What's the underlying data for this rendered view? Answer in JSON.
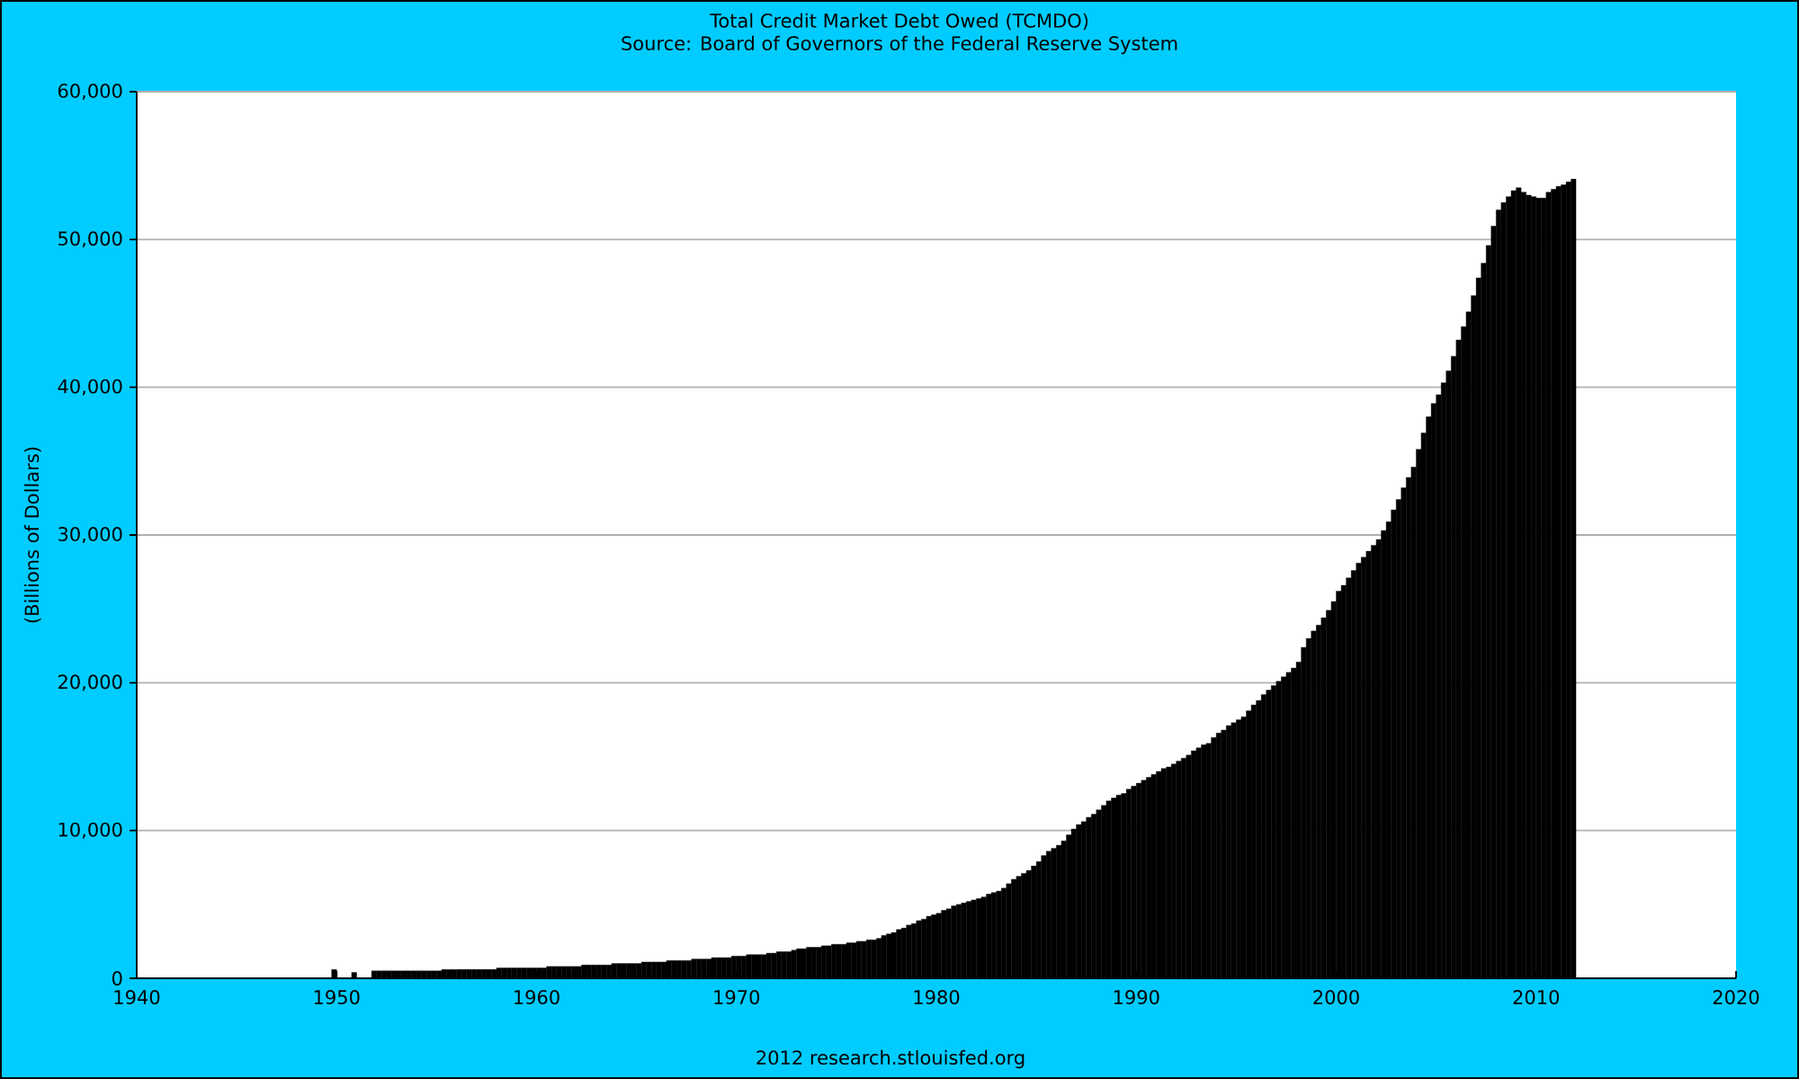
{
  "chart_data": {
    "type": "bar",
    "title": "Total Credit Market Debt Owed (TCMDO)",
    "subtitle": "Source: Board of Governors of the Federal Reserve System",
    "ylabel": "(Billions of Dollars)",
    "annotations": [
      "2012 research.stlouisfed.org"
    ],
    "color": "#000000",
    "grid": "y",
    "xlim": [
      "1940",
      "2020"
    ],
    "xticks": [
      "1940",
      "1950",
      "1960",
      "1970",
      "1980",
      "1990",
      "2000",
      "2010",
      "2020"
    ],
    "ylim": [
      0,
      60000
    ],
    "yticks": [
      0,
      {
        "value": 10000,
        "label": "10,000"
      },
      {
        "value": 20000,
        "label": "20,000"
      },
      {
        "value": 30000,
        "label": "30,000"
      },
      {
        "value": 40000,
        "label": "40,000"
      },
      {
        "value": 50000,
        "label": "50,000"
      },
      {
        "value": 60000,
        "label": "60,000"
      }
    ],
    "x": [
      "1949-10",
      "1950-10",
      "1951-10",
      "1952-01",
      "1952-04",
      "1952-07",
      "1952-10",
      "1953-01",
      "1953-04",
      "1953-07",
      "1953-10",
      "1954-01",
      "1954-04",
      "1954-07",
      "1954-10",
      "1955-01",
      "1955-04",
      "1955-07",
      "1955-10",
      "1956-01",
      "1956-04",
      "1956-07",
      "1956-10",
      "1957-01",
      "1957-04",
      "1957-07",
      "1957-10",
      "1958-01",
      "1958-04",
      "1958-07",
      "1958-10",
      "1959-01",
      "1959-04",
      "1959-07",
      "1959-10",
      "1960-01",
      "1960-04",
      "1960-07",
      "1960-10",
      "1961-01",
      "1961-04",
      "1961-07",
      "1961-10",
      "1962-01",
      "1962-04",
      "1962-07",
      "1962-10",
      "1963-01",
      "1963-04",
      "1963-07",
      "1963-10",
      "1964-01",
      "1964-04",
      "1964-07",
      "1964-10",
      "1965-01",
      "1965-04",
      "1965-07",
      "1965-10",
      "1966-01",
      "1966-04",
      "1966-07",
      "1966-10",
      "1967-01",
      "1967-04",
      "1967-07",
      "1967-10",
      "1968-01",
      "1968-04",
      "1968-07",
      "1968-10",
      "1969-01",
      "1969-04",
      "1969-07",
      "1969-10",
      "1970-01",
      "1970-04",
      "1970-07",
      "1970-10",
      "1971-01",
      "1971-04",
      "1971-07",
      "1971-10",
      "1972-01",
      "1972-04",
      "1972-07",
      "1972-10",
      "1973-01",
      "1973-04",
      "1973-07",
      "1973-10",
      "1974-01",
      "1974-04",
      "1974-07",
      "1974-10",
      "1975-01",
      "1975-04",
      "1975-07",
      "1975-10",
      "1976-01",
      "1976-04",
      "1976-07",
      "1976-10",
      "1977-01",
      "1977-04",
      "1977-07",
      "1977-10",
      "1978-01",
      "1978-04",
      "1978-07",
      "1978-10",
      "1979-01",
      "1979-04",
      "1979-07",
      "1979-10",
      "1980-01",
      "1980-04",
      "1980-07",
      "1980-10",
      "1981-01",
      "1981-04",
      "1981-07",
      "1981-10",
      "1982-01",
      "1982-04",
      "1982-07",
      "1982-10",
      "1983-01",
      "1983-04",
      "1983-07",
      "1983-10",
      "1984-01",
      "1984-04",
      "1984-07",
      "1984-10",
      "1985-01",
      "1985-04",
      "1985-07",
      "1985-10",
      "1986-01",
      "1986-04",
      "1986-07",
      "1986-10",
      "1987-01",
      "1987-04",
      "1987-07",
      "1987-10",
      "1988-01",
      "1988-04",
      "1988-07",
      "1988-10",
      "1989-01",
      "1989-04",
      "1989-07",
      "1989-10",
      "1990-01",
      "1990-04",
      "1990-07",
      "1990-10",
      "1991-01",
      "1991-04",
      "1991-07",
      "1991-10",
      "1992-01",
      "1992-04",
      "1992-07",
      "1992-10",
      "1993-01",
      "1993-04",
      "1993-07",
      "1993-10",
      "1994-01",
      "1994-04",
      "1994-07",
      "1994-10",
      "1995-01",
      "1995-04",
      "1995-07",
      "1995-10",
      "1996-01",
      "1996-04",
      "1996-07",
      "1996-10",
      "1997-01",
      "1997-04",
      "1997-07",
      "1997-10",
      "1998-01",
      "1998-04",
      "1998-07",
      "1998-10",
      "1999-01",
      "1999-04",
      "1999-07",
      "1999-10",
      "2000-01",
      "2000-04",
      "2000-07",
      "2000-10",
      "2001-01",
      "2001-04",
      "2001-07",
      "2001-10",
      "2002-01",
      "2002-04",
      "2002-07",
      "2002-10",
      "2003-01",
      "2003-04",
      "2003-07",
      "2003-10",
      "2004-01",
      "2004-04",
      "2004-07",
      "2004-10",
      "2005-01",
      "2005-04",
      "2005-07",
      "2005-10",
      "2006-01",
      "2006-04",
      "2006-07",
      "2006-10",
      "2007-01",
      "2007-04",
      "2007-07",
      "2007-10",
      "2008-01",
      "2008-04",
      "2008-07",
      "2008-10",
      "2009-01",
      "2009-04",
      "2009-07",
      "2009-10",
      "2010-01",
      "2010-04",
      "2010-07",
      "2010-10",
      "2011-01",
      "2011-04",
      "2011-07",
      "2011-10"
    ],
    "values": [
      600,
      400,
      500,
      500,
      500,
      500,
      500,
      500,
      500,
      500,
      500,
      500,
      500,
      500,
      500,
      500,
      600,
      600,
      600,
      600,
      600,
      600,
      600,
      600,
      600,
      600,
      600,
      700,
      700,
      700,
      700,
      700,
      700,
      700,
      700,
      700,
      700,
      800,
      800,
      800,
      800,
      800,
      800,
      800,
      900,
      900,
      900,
      900,
      900,
      900,
      1000,
      1000,
      1000,
      1000,
      1000,
      1000,
      1100,
      1100,
      1100,
      1100,
      1100,
      1200,
      1200,
      1200,
      1200,
      1200,
      1300,
      1300,
      1300,
      1300,
      1400,
      1400,
      1400,
      1400,
      1500,
      1500,
      1500,
      1600,
      1600,
      1600,
      1600,
      1700,
      1700,
      1800,
      1800,
      1800,
      1900,
      2000,
      2000,
      2100,
      2100,
      2100,
      2200,
      2200,
      2300,
      2300,
      2300,
      2400,
      2400,
      2500,
      2500,
      2600,
      2600,
      2700,
      2900,
      3000,
      3100,
      3300,
      3400,
      3600,
      3700,
      3900,
      4000,
      4200,
      4300,
      4400,
      4600,
      4700,
      4900,
      5000,
      5100,
      5200,
      5300,
      5400,
      5500,
      5700,
      5800,
      5900,
      6100,
      6400,
      6700,
      6900,
      7100,
      7300,
      7600,
      7900,
      8300,
      8600,
      8800,
      9000,
      9300,
      9700,
      10100,
      10400,
      10600,
      10900,
      11100,
      11400,
      11700,
      12000,
      12200,
      12400,
      12500,
      12800,
      13000,
      13200,
      13400,
      13600,
      13800,
      14000,
      14200,
      14300,
      14500,
      14700,
      14900,
      15100,
      15400,
      15600,
      15800,
      15900,
      16300,
      16600,
      16800,
      17100,
      17300,
      17500,
      17700,
      18100,
      18500,
      18800,
      19200,
      19500,
      19800,
      20100,
      20400,
      20700,
      21000,
      21400,
      22400,
      23000,
      23500,
      23900,
      24400,
      24900,
      25500,
      26200,
      26600,
      27100,
      27600,
      28100,
      28500,
      28900,
      29300,
      29700,
      30300,
      30900,
      31700,
      32400,
      33200,
      33900,
      34600,
      35800,
      36900,
      38000,
      38900,
      39500,
      40300,
      41100,
      42100,
      43200,
      44100,
      45100,
      46200,
      47400,
      48400,
      49600,
      50900,
      52000,
      52500,
      52900,
      53300,
      53500,
      53200,
      53000,
      52900,
      52800,
      52800,
      53200,
      53400,
      53600,
      53700,
      53900,
      54100
    ]
  }
}
